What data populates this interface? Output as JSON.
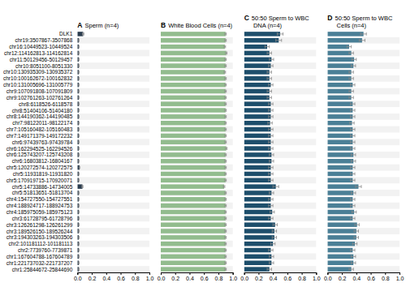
{
  "chart_data": [
    {
      "type": "bar",
      "orientation": "horizontal",
      "title": "A",
      "subtitle": "Sperm (n=4)",
      "categories": [
        "DLK1",
        "chr19:3507867-3507868",
        "chr16:10449523-10449524",
        "chr12:114162813-114162814",
        "chr11:50129456-50129457",
        "chr10:8051100-8051330",
        "chr10:130935309-130935372",
        "chr10:100162672-100162832",
        "chr10:131005696-131005779",
        "chr9:107091808-107091809",
        "chr9:102761263-102761264",
        "chr8:6118526-6118578",
        "chr8:51404106-51404180",
        "chr8:144190362-144190485",
        "chr7:98122011-98122174",
        "chr7:105160482-105160483",
        "chr7:149171379-149172232",
        "chr6:97439763-97439784",
        "chr6:162294525-162294526",
        "chr6:125743207-125743208",
        "chr6:16803812-16804167",
        "chr5:120272574-120272575",
        "chr5:11931819-11931820",
        "chr5:170919715-170920071",
        "chr5:14733886-14734005",
        "chr5:51813651-51813704",
        "chr4:154727550-154727551",
        "chr4:188924717-188924753",
        "chr4:185975059-185975123",
        "chr3:61728795-61728796",
        "chr3:126261298-126261299",
        "chr3:189526150-189526244",
        "chr3:194303263-194303506",
        "chr2:101181112-101181113",
        "chr2:7739760-7739871",
        "chr1:167604788-167604789",
        "chr1:221737032-221737207",
        "chr1:25844672-25844690"
      ],
      "values": [
        0.08,
        0.02,
        0.02,
        0.02,
        0.02,
        0.02,
        0.02,
        0.02,
        0.02,
        0.02,
        0.02,
        0.02,
        0.02,
        0.02,
        0.02,
        0.02,
        0.02,
        0.02,
        0.02,
        0.02,
        0.02,
        0.03,
        0.02,
        0.02,
        0.07,
        0.02,
        0.02,
        0.02,
        0.02,
        0.02,
        0.02,
        0.02,
        0.02,
        0.02,
        0.02,
        0.02,
        0.02,
        0.02
      ],
      "errors": [
        0.01,
        0.003,
        0.003,
        0.003,
        0.003,
        0.003,
        0.003,
        0.003,
        0.003,
        0.003,
        0.003,
        0.003,
        0.003,
        0.003,
        0.003,
        0.003,
        0.003,
        0.003,
        0.003,
        0.003,
        0.003,
        0.003,
        0.003,
        0.003,
        0.008,
        0.003,
        0.003,
        0.003,
        0.003,
        0.003,
        0.003,
        0.003,
        0.003,
        0.003,
        0.003,
        0.003,
        0.003,
        0.003
      ],
      "color": "#2b3d4f",
      "xlim": [
        0.0,
        1.0
      ],
      "xticks": [
        {
          "value": 0.0,
          "label": "0.0"
        },
        0.2,
        0.4,
        0.6,
        0.8,
        {
          "value": 1.0,
          "label": "1.0"
        }
      ]
    },
    {
      "type": "bar",
      "orientation": "horizontal",
      "title": "B",
      "subtitle": "White Blood Cells (n=4)",
      "categories": [
        "DLK1",
        "chr19:3507867-3507868",
        "chr16:10449523-10449524",
        "chr12:114162813-114162814",
        "chr11:50129456-50129457",
        "chr10:8051100-8051330",
        "chr10:130935309-130935372",
        "chr10:100162672-100162832",
        "chr10:131005696-131005779",
        "chr9:107091808-107091809",
        "chr9:102761263-102761264",
        "chr8:6118526-6118578",
        "chr8:51404106-51404180",
        "chr8:144190362-144190485",
        "chr7:98122011-98122174",
        "chr7:105160482-105160483",
        "chr7:149171379-149172232",
        "chr6:97439763-97439784",
        "chr6:162294525-162294526",
        "chr6:125743207-125743208",
        "chr6:16803812-16804167",
        "chr5:120272574-120272575",
        "chr5:11931819-11931820",
        "chr5:170919715-170920071",
        "chr5:14733886-14734005",
        "chr5:51813651-51813704",
        "chr4:154727550-154727551",
        "chr4:188924717-188924753",
        "chr4:185975059-185975123",
        "chr3:61728795-61728796",
        "chr3:126261298-126261299",
        "chr3:189526150-189526244",
        "chr3:194303263-194303506",
        "chr2:101181112-101181113",
        "chr2:7739760-7739871",
        "chr1:167604788-167604789",
        "chr1:221737032-221737207",
        "chr1:25844672-25844690"
      ],
      "values": [
        0.9,
        0.9,
        0.89,
        0.91,
        0.9,
        0.9,
        0.89,
        0.9,
        0.9,
        0.9,
        0.9,
        0.9,
        0.9,
        0.9,
        0.9,
        0.9,
        0.9,
        0.9,
        0.91,
        0.9,
        0.9,
        0.9,
        0.9,
        0.9,
        0.88,
        0.9,
        0.9,
        0.9,
        0.9,
        0.9,
        0.9,
        0.9,
        0.9,
        0.9,
        0.9,
        0.9,
        0.9,
        0.9
      ],
      "errors": [
        0.01,
        0.01,
        0.01,
        0.01,
        0.01,
        0.01,
        0.01,
        0.01,
        0.01,
        0.01,
        0.01,
        0.01,
        0.01,
        0.01,
        0.01,
        0.01,
        0.01,
        0.01,
        0.01,
        0.01,
        0.01,
        0.01,
        0.01,
        0.01,
        0.01,
        0.01,
        0.01,
        0.01,
        0.01,
        0.01,
        0.01,
        0.01,
        0.01,
        0.01,
        0.01,
        0.01,
        0.01,
        0.01
      ],
      "color": "#92bc8e",
      "xlim": [
        0.0,
        1.0
      ],
      "xticks": [
        {
          "value": 0.0,
          "label": "0.0"
        },
        0.2,
        0.4,
        0.6,
        0.8,
        {
          "value": 1.0,
          "label": "1.0"
        }
      ]
    },
    {
      "type": "bar",
      "orientation": "horizontal",
      "title": "C",
      "subtitle": "50:50 Sperm to WBC DNA (n=4)",
      "categories": [
        "DLK1",
        "chr19:3507867-3507868",
        "chr16:10449523-10449524",
        "chr12:114162813-114162814",
        "chr11:50129456-50129457",
        "chr10:8051100-8051330",
        "chr10:130935309-130935372",
        "chr10:100162672-100162832",
        "chr10:131005696-131005779",
        "chr9:107091808-107091809",
        "chr9:102761263-102761264",
        "chr8:6118526-6118578",
        "chr8:51404106-51404180",
        "chr8:144190362-144190485",
        "chr7:98122011-98122174",
        "chr7:105160482-105160483",
        "chr7:149171379-149172232",
        "chr6:97439763-97439784",
        "chr6:162294525-162294526",
        "chr6:125743207-125743208",
        "chr6:16803812-16804167",
        "chr5:120272574-120272575",
        "chr5:11931819-11931820",
        "chr5:170919715-170920071",
        "chr5:14733886-14734005",
        "chr5:51813651-51813704",
        "chr4:154727550-154727551",
        "chr4:188924717-188924753",
        "chr4:185975059-185975123",
        "chr3:61728795-61728796",
        "chr3:126261298-126261299",
        "chr3:189526150-189526244",
        "chr3:194303263-194303506",
        "chr2:101181112-101181113",
        "chr2:7739760-7739871",
        "chr1:167604788-167604789",
        "chr1:221737032-221737207",
        "chr1:25844672-25844690"
      ],
      "values": [
        0.5,
        0.48,
        0.32,
        0.35,
        0.38,
        0.37,
        0.35,
        0.35,
        0.37,
        0.35,
        0.35,
        0.37,
        0.37,
        0.37,
        0.36,
        0.37,
        0.37,
        0.37,
        0.37,
        0.38,
        0.38,
        0.37,
        0.37,
        0.37,
        0.44,
        0.38,
        0.37,
        0.37,
        0.39,
        0.37,
        0.43,
        0.42,
        0.42,
        0.4,
        0.37,
        0.38,
        0.38,
        0.35
      ],
      "errors": [
        0.04,
        0.04,
        0.03,
        0.03,
        0.03,
        0.03,
        0.03,
        0.03,
        0.03,
        0.03,
        0.03,
        0.03,
        0.03,
        0.03,
        0.03,
        0.03,
        0.03,
        0.03,
        0.03,
        0.03,
        0.03,
        0.03,
        0.03,
        0.03,
        0.04,
        0.03,
        0.03,
        0.03,
        0.03,
        0.03,
        0.03,
        0.03,
        0.03,
        0.03,
        0.03,
        0.03,
        0.03,
        0.03
      ],
      "color": "#1d4e6b",
      "xlim": [
        0.0,
        1.0
      ],
      "xticks": [
        {
          "value": 0.0,
          "label": "0.0"
        },
        0.2,
        0.4,
        0.6,
        0.8,
        {
          "value": 1.0,
          "label": "1.0"
        }
      ]
    },
    {
      "type": "bar",
      "orientation": "horizontal",
      "title": "D",
      "subtitle": "50:50 Sperm to WBC Cells (n=4)",
      "categories": [
        "DLK1",
        "chr19:3507867-3507868",
        "chr16:10449523-10449524",
        "chr12:114162813-114162814",
        "chr11:50129456-50129457",
        "chr10:8051100-8051330",
        "chr10:130935309-130935372",
        "chr10:100162672-100162832",
        "chr10:131005696-131005779",
        "chr9:107091808-107091809",
        "chr9:102761263-102761264",
        "chr8:6118526-6118578",
        "chr8:51404106-51404180",
        "chr8:144190362-144190485",
        "chr7:98122011-98122174",
        "chr7:105160482-105160483",
        "chr7:149171379-149172232",
        "chr6:97439763-97439784",
        "chr6:162294525-162294526",
        "chr6:125743207-125743208",
        "chr6:16803812-16804167",
        "chr5:120272574-120272575",
        "chr5:11931819-11931820",
        "chr5:170919715-170920071",
        "chr5:14733886-14734005",
        "chr5:51813651-51813704",
        "chr4:154727550-154727551",
        "chr4:188924717-188924753",
        "chr4:185975059-185975123",
        "chr3:61728795-61728796",
        "chr3:126261298-126261299",
        "chr3:189526150-189526244",
        "chr3:194303263-194303506",
        "chr2:101181112-101181113",
        "chr2:7739760-7739871",
        "chr1:167604788-167604789",
        "chr1:221737032-221737207",
        "chr1:25844672-25844690"
      ],
      "values": [
        0.5,
        0.48,
        0.3,
        0.33,
        0.37,
        0.36,
        0.33,
        0.33,
        0.35,
        0.33,
        0.33,
        0.35,
        0.35,
        0.35,
        0.34,
        0.35,
        0.35,
        0.35,
        0.35,
        0.36,
        0.36,
        0.35,
        0.35,
        0.35,
        0.43,
        0.36,
        0.35,
        0.35,
        0.37,
        0.35,
        0.41,
        0.4,
        0.4,
        0.38,
        0.35,
        0.36,
        0.36,
        0.33
      ],
      "errors": [
        0.04,
        0.04,
        0.03,
        0.03,
        0.03,
        0.03,
        0.03,
        0.03,
        0.03,
        0.03,
        0.03,
        0.03,
        0.03,
        0.03,
        0.03,
        0.03,
        0.03,
        0.03,
        0.03,
        0.03,
        0.03,
        0.03,
        0.03,
        0.03,
        0.04,
        0.03,
        0.03,
        0.03,
        0.03,
        0.03,
        0.03,
        0.03,
        0.03,
        0.03,
        0.03,
        0.03,
        0.03,
        0.03
      ],
      "color": "#4a7f96",
      "xlim": [
        0.0,
        1.0
      ],
      "xticks": [
        {
          "value": 0.0,
          "label": "0.0"
        },
        0.2,
        0.4,
        0.6,
        0.8,
        {
          "value": 1.0,
          "label": "1.0"
        }
      ]
    }
  ]
}
